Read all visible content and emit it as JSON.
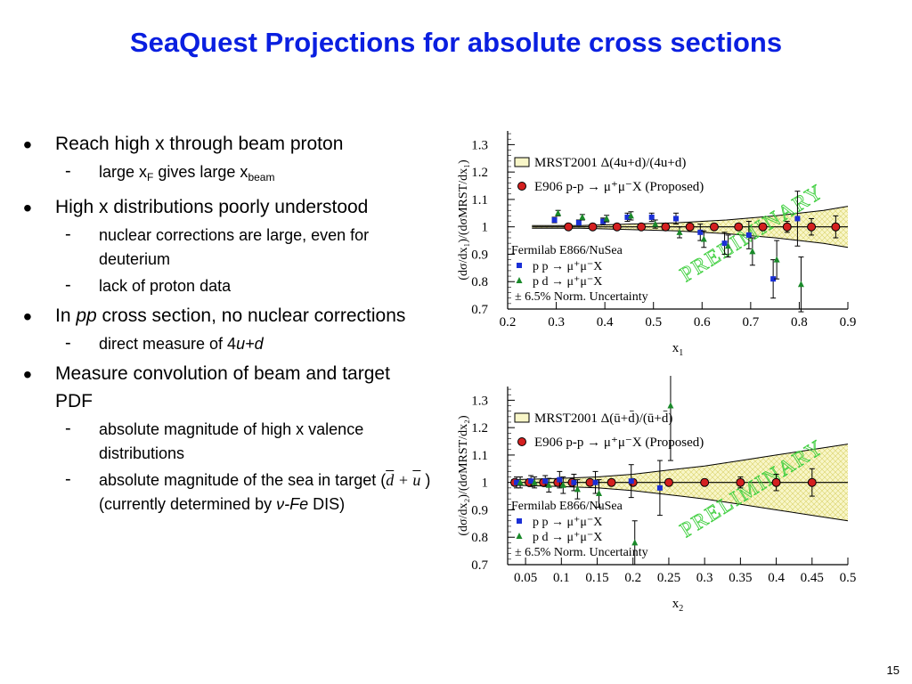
{
  "slide": {
    "title": "SeaQuest Projections for absolute cross sections",
    "page_number": "15"
  },
  "bullets": {
    "b1": "Reach high x through beam proton",
    "b1_s1_a": "large x",
    "b1_s1_sub_a": "F",
    "b1_s1_b": " gives large x",
    "b1_s1_sub_b": "beam",
    "b2": "High x distributions poorly understood",
    "b2_s1": "nuclear corrections are large, even for deuterium",
    "b2_s2": "lack of proton data",
    "b3_a": "In ",
    "b3_it": "pp",
    "b3_b": " cross section, no nuclear corrections",
    "b3_s1_a": "direct measure of 4",
    "b3_s1_it": "u+d",
    "b4": "Measure convolution of beam and target PDF",
    "b4_s1": "absolute magnitude of high x valence distributions",
    "b4_s2": "absolute magnitude of the sea in target (",
    "b4_s2_d": "d",
    "b4_s2_plus": " + ",
    "b4_s2_u": "u",
    "b4_s2_close": " )",
    "b4_s2_line2_a": "(currently determined by ",
    "b4_s2_nu": "ν-Fe",
    "b4_s2_line2_b": " DIS)"
  },
  "colors": {
    "title": "#0a1fe0",
    "band_fill": "#f8f6c8",
    "proposed": "#d42020",
    "pp": "#1a2fd6",
    "pd": "#1a8a2a",
    "watermark": "#3fcf3f"
  },
  "chart_data": [
    {
      "type": "scatter",
      "xlabel": "x",
      "xlabel_sub": "1",
      "ylabel": "(dσ/dx₁)/(dσMRST/dx₁)",
      "xlim": [
        0.2,
        0.9
      ],
      "ylim": [
        0.7,
        1.35
      ],
      "xticks": [
        "0.2",
        "0.3",
        "0.4",
        "0.5",
        "0.6",
        "0.7",
        "0.8",
        "0.9"
      ],
      "yticks": [
        "0.7",
        "0.8",
        "0.9",
        "1",
        "1.1",
        "1.2",
        "1.3"
      ],
      "legend_top": [
        "MRST2001 Δ(4u+d)/(4u+d)",
        "E906 p-p → μ⁺μ⁻X (Proposed)"
      ],
      "legend_bottom": [
        "Fermilab E866/NuSea",
        "p p → μ⁺μ⁻X",
        "p d → μ⁺μ⁻X",
        "± 6.5% Norm. Uncertainty"
      ],
      "watermark": "PRELIMINARY",
      "band_x": [
        0.25,
        0.35,
        0.45,
        0.55,
        0.65,
        0.75,
        0.85,
        0.9
      ],
      "band_half": [
        0.005,
        0.005,
        0.01,
        0.015,
        0.025,
        0.04,
        0.06,
        0.075
      ],
      "series": [
        {
          "name": "E906 p-p → μ⁺μ⁻X (Proposed)",
          "x": [
            0.325,
            0.375,
            0.425,
            0.475,
            0.525,
            0.575,
            0.625,
            0.675,
            0.725,
            0.775,
            0.825,
            0.875
          ],
          "y": [
            1.0,
            1.0,
            1.0,
            1.0,
            1.0,
            1.0,
            1.0,
            1.0,
            1.0,
            1.0,
            1.0,
            1.0
          ],
          "err": [
            0.005,
            0.005,
            0.005,
            0.005,
            0.005,
            0.005,
            0.006,
            0.008,
            0.012,
            0.02,
            0.03,
            0.04
          ]
        },
        {
          "name": "p p → μ⁺μ⁻X",
          "x": [
            0.3,
            0.35,
            0.4,
            0.45,
            0.5,
            0.55,
            0.6,
            0.65,
            0.7,
            0.75,
            0.8
          ],
          "y": [
            1.025,
            1.015,
            1.02,
            1.035,
            1.035,
            1.03,
            0.98,
            0.94,
            0.97,
            0.81,
            1.03
          ],
          "err": [
            0.01,
            0.01,
            0.012,
            0.015,
            0.015,
            0.02,
            0.03,
            0.04,
            0.05,
            0.07,
            0.1
          ]
        },
        {
          "name": "p d → μ⁺μ⁻X",
          "x": [
            0.3,
            0.35,
            0.4,
            0.45,
            0.5,
            0.55,
            0.6,
            0.65,
            0.7,
            0.75,
            0.8
          ],
          "y": [
            1.05,
            1.035,
            1.03,
            1.04,
            1.01,
            0.98,
            0.955,
            0.93,
            0.91,
            0.88,
            0.79
          ],
          "err": [
            0.01,
            0.01,
            0.012,
            0.015,
            0.015,
            0.02,
            0.03,
            0.04,
            0.05,
            0.07,
            0.1
          ]
        }
      ]
    },
    {
      "type": "scatter",
      "xlabel": "x",
      "xlabel_sub": "2",
      "ylabel": "(dσ/dx₂)/(dσMRST/dx₂)",
      "xlim": [
        0.025,
        0.5
      ],
      "ylim": [
        0.7,
        1.35
      ],
      "xticks": [
        "0.05",
        "0.1",
        "0.15",
        "0.2",
        "0.25",
        "0.3",
        "0.35",
        "0.4",
        "0.45",
        "0.5"
      ],
      "xtick_values": [
        0.05,
        0.1,
        0.15,
        0.2,
        0.25,
        0.3,
        0.35,
        0.4,
        0.45,
        0.5
      ],
      "yticks": [
        "0.7",
        "0.8",
        "0.9",
        "1",
        "1.1",
        "1.2",
        "1.3"
      ],
      "legend_top": [
        "MRST2001 Δ(ū+d̄)/(ū+d̄)",
        "E906 p-p → μ⁺μ⁻X (Proposed)"
      ],
      "legend_bottom": [
        "Fermilab E866/NuSea",
        "p p → μ⁺μ⁻X",
        "p d → μ⁺μ⁻X",
        "± 6.5% Norm. Uncertainty"
      ],
      "watermark": "PRELIMINARY",
      "band_x": [
        0.03,
        0.1,
        0.15,
        0.2,
        0.25,
        0.3,
        0.35,
        0.4,
        0.45,
        0.5
      ],
      "band_half": [
        0.01,
        0.015,
        0.02,
        0.03,
        0.045,
        0.06,
        0.08,
        0.1,
        0.12,
        0.14
      ],
      "series": [
        {
          "name": "E906 p-p → μ⁺μ⁻X (Proposed)",
          "x": [
            0.035,
            0.055,
            0.075,
            0.095,
            0.115,
            0.14,
            0.17,
            0.2,
            0.25,
            0.3,
            0.35,
            0.4,
            0.45
          ],
          "y": [
            1.0,
            1.0,
            1.0,
            1.0,
            1.0,
            1.0,
            1.0,
            1.0,
            1.0,
            1.0,
            1.0,
            1.0,
            1.0
          ],
          "err": [
            0.005,
            0.005,
            0.005,
            0.005,
            0.005,
            0.005,
            0.005,
            0.006,
            0.008,
            0.012,
            0.02,
            0.03,
            0.05
          ]
        },
        {
          "name": "p p → μ⁺μ⁻X",
          "x": [
            0.04,
            0.06,
            0.08,
            0.1,
            0.12,
            0.15,
            0.2,
            0.24
          ],
          "y": [
            1.0,
            1.005,
            1.005,
            1.01,
            1.0,
            1.0,
            1.005,
            0.98
          ],
          "err": [
            0.02,
            0.02,
            0.02,
            0.03,
            0.03,
            0.04,
            0.06,
            0.1
          ]
        },
        {
          "name": "p d → μ⁺μ⁻X",
          "x": [
            0.04,
            0.06,
            0.08,
            0.1,
            0.12,
            0.15,
            0.2,
            0.25
          ],
          "y": [
            1.0,
            1.0,
            0.99,
            0.99,
            0.975,
            0.96,
            0.78,
            1.28
          ],
          "err": [
            0.02,
            0.02,
            0.025,
            0.03,
            0.035,
            0.05,
            0.08,
            0.2
          ]
        }
      ]
    }
  ]
}
